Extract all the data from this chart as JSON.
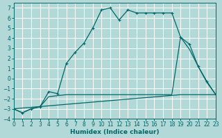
{
  "xlabel": "Humidex (Indice chaleur)",
  "background_color": "#b2d8d8",
  "grid_color": "#d0eaea",
  "line_color": "#006666",
  "xlim": [
    0,
    23
  ],
  "ylim": [
    -4,
    7.5
  ],
  "xticks": [
    0,
    1,
    2,
    3,
    4,
    5,
    6,
    7,
    8,
    9,
    10,
    11,
    12,
    13,
    14,
    15,
    16,
    17,
    18,
    19,
    20,
    21,
    22,
    23
  ],
  "yticks": [
    -4,
    -3,
    -2,
    -1,
    0,
    1,
    2,
    3,
    4,
    5,
    6,
    7
  ],
  "curve1_x": [
    0,
    1,
    2,
    3,
    4,
    5,
    6,
    7,
    8,
    9,
    10,
    11,
    12,
    13,
    14,
    15,
    16,
    17,
    18,
    19,
    20,
    21,
    22,
    23
  ],
  "curve1_y": [
    -3.0,
    -3.4,
    -3.0,
    -2.8,
    -1.3,
    -1.5,
    1.5,
    2.6,
    3.5,
    5.0,
    6.8,
    7.0,
    5.8,
    6.8,
    6.5,
    6.5,
    6.5,
    6.5,
    6.5,
    4.1,
    3.4,
    1.2,
    -0.3,
    -1.6
  ],
  "curve2_x": [
    0,
    1,
    2,
    3,
    4,
    5,
    6,
    7,
    8,
    9,
    10,
    11,
    12,
    13,
    14,
    15,
    16,
    17,
    18,
    19,
    20,
    21,
    22,
    23
  ],
  "curve2_y": [
    -3.0,
    -3.4,
    -3.0,
    -2.8,
    -1.8,
    -1.7,
    -1.6,
    -1.6,
    -1.6,
    -1.6,
    -1.6,
    -1.6,
    -1.6,
    -1.6,
    -1.6,
    -1.6,
    -1.6,
    -1.6,
    -1.6,
    4.1,
    2.9,
    1.2,
    -0.4,
    -1.6
  ],
  "curve3_x": [
    0,
    19,
    23
  ],
  "curve3_y": [
    -3.0,
    -1.6,
    -1.6
  ]
}
